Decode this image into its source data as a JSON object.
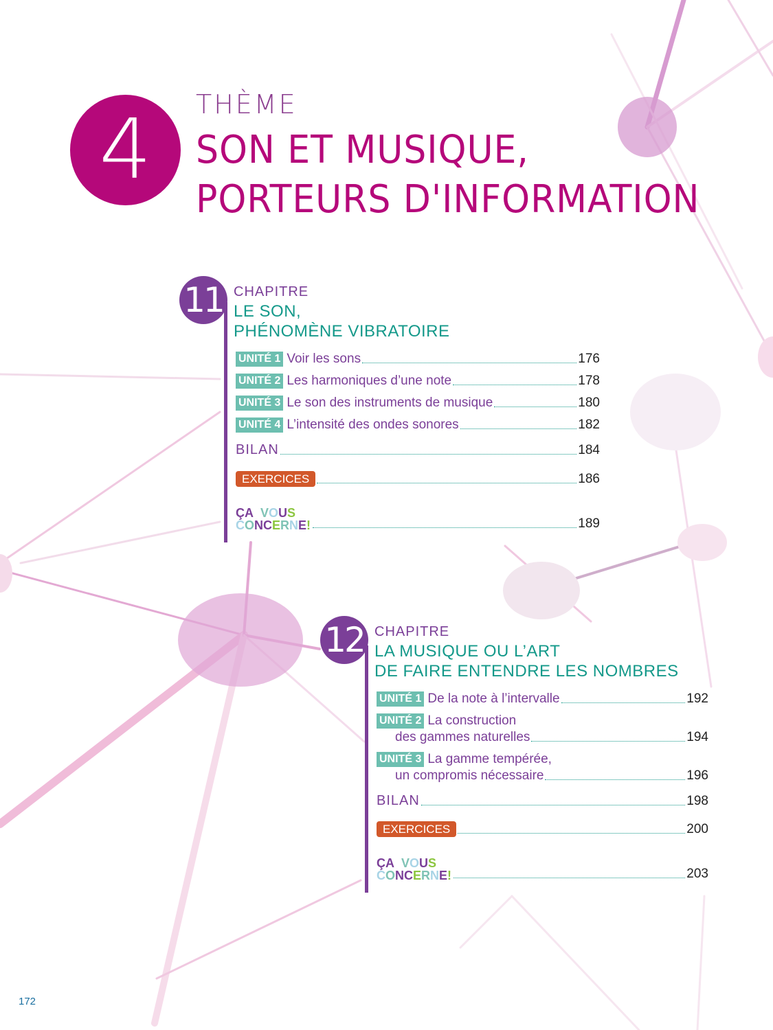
{
  "theme": {
    "label": "THÈME",
    "number": "4",
    "title_line1": "SON ET MUSIQUE,",
    "title_line2": "PORTEURS D'INFORMATION"
  },
  "colors": {
    "theme": "#b5087a",
    "chapter": "#7b3f98",
    "heading": "#14998a",
    "unit_badge": "#6dbfb0",
    "exercices": "#d2582a"
  },
  "chapters": [
    {
      "number": "11",
      "label": "CHAPITRE",
      "title_line1": "LE SON,",
      "title_line2": "PHÉNOMÈNE VIBRATOIRE",
      "units": [
        {
          "badge": "UNITÉ 1",
          "title": "Voir les sons",
          "page": "176"
        },
        {
          "badge": "UNITÉ 2",
          "title": "Les harmoniques d’une note",
          "page": "178"
        },
        {
          "badge": "UNITÉ 3",
          "title": "Le son des instruments de musique",
          "page": "180"
        },
        {
          "badge": "UNITÉ 4",
          "title": "L’intensité des ondes sonores",
          "page": "182"
        }
      ],
      "bilan": {
        "label": "BILAN",
        "page": "184"
      },
      "exercices": {
        "label": "EXERCICES",
        "page": "186"
      },
      "ca_vous_concerne": {
        "label": "ÇA VOUS CONCERNE!",
        "page": "189"
      }
    },
    {
      "number": "12",
      "label": "CHAPITRE",
      "title_line1": "LA MUSIQUE OU L’ART",
      "title_line2": "DE FAIRE ENTENDRE LES NOMBRES",
      "units": [
        {
          "badge": "UNITÉ 1",
          "title": "De la note à l’intervalle",
          "page": "192"
        },
        {
          "badge": "UNITÉ 2",
          "title": "La construction",
          "title2": "des gammes naturelles",
          "page": "194"
        },
        {
          "badge": "UNITÉ 3",
          "title": "La gamme tempérée,",
          "title2": "un compromis nécessaire",
          "page": "196"
        }
      ],
      "bilan": {
        "label": "BILAN",
        "page": "198"
      },
      "exercices": {
        "label": "EXERCICES",
        "page": "200"
      },
      "ca_vous_concerne": {
        "label": "ÇA VOUS CONCERNE!",
        "page": "203"
      }
    }
  ],
  "footer": {
    "page_number": "172"
  }
}
